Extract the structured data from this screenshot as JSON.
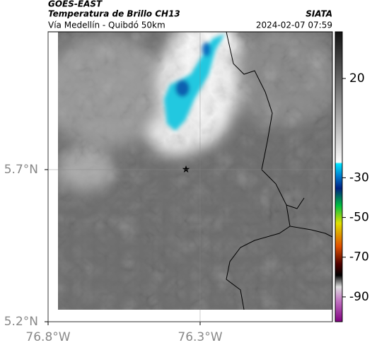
{
  "header": {
    "satellite": "GOES-EAST",
    "product": "Temperatura de Brillo CH13",
    "source": "SIATA",
    "route": "Vía Medellín - Quibdó 50km",
    "datetime": "2024-02-07 07:59"
  },
  "map": {
    "xlim": [
      -76.8,
      -75.865
    ],
    "ylim": [
      5.2,
      6.153
    ],
    "xticks": [
      {
        "value": -76.8,
        "label": "76.8°W"
      },
      {
        "value": -76.3,
        "label": "76.3°W"
      }
    ],
    "yticks": [
      {
        "value": 5.7,
        "label": "5.7°N"
      },
      {
        "value": 5.2,
        "label": "5.2°N"
      }
    ]
  },
  "colorbar": {
    "lim": [
      -102.5,
      43.5
    ],
    "ticks": [
      20,
      -30,
      -50,
      -70,
      -90
    ]
  }
}
